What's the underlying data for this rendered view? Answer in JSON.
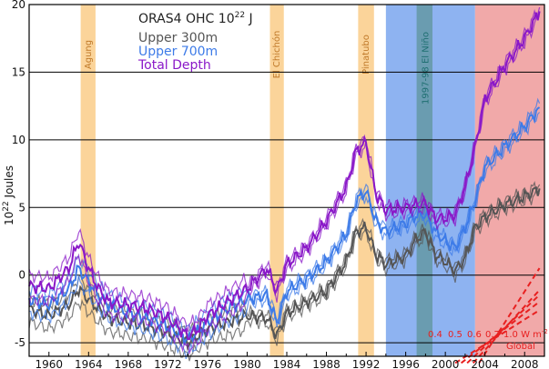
{
  "chart_data": {
    "type": "line",
    "title": "ORAS4  OHC",
    "units": "10",
    "units_exp": "22",
    "units_suffix": " J",
    "xlabel": "",
    "ylabel": "10",
    "ylabel_exp": "22",
    "ylabel_suffix": " Joules",
    "xlim": [
      1958,
      2010
    ],
    "ylim": [
      -6,
      20
    ],
    "x_ticks": [
      "1960",
      "1964",
      "1968",
      "1972",
      "1976",
      "1980",
      "1984",
      "1988",
      "1992",
      "1996",
      "2000",
      "2004",
      "2008"
    ],
    "y_ticks": [
      "-5",
      "0",
      "5",
      "10",
      "15",
      "20"
    ],
    "grid_y": [
      -5,
      0,
      5,
      10,
      15,
      20
    ],
    "events": [
      {
        "label": "Agung",
        "start": 1963.2,
        "end": 1964.7,
        "color": "#fbd49a"
      },
      {
        "label": "El Chichón",
        "start": 1982.3,
        "end": 1983.7,
        "color": "#fbd49a"
      },
      {
        "label": "Pinatubo",
        "start": 1991.2,
        "end": 1992.8,
        "color": "#fbd49a"
      }
    ],
    "periods": [
      {
        "label": "",
        "start": 1994.0,
        "end": 2003.0,
        "color": "#7aa6ee"
      },
      {
        "label": "1997-98 El Niño",
        "start": 1997.1,
        "end": 1998.7,
        "color": "#6a9cb0"
      },
      {
        "label": "",
        "start": 2003.0,
        "end": 2010.0,
        "color": "#ee9a9a"
      }
    ],
    "series": [
      {
        "name": "Upper 300m",
        "color": "#555555",
        "x": [
          1958,
          1960,
          1962,
          1963,
          1964,
          1965,
          1966,
          1968,
          1970,
          1972,
          1974,
          1975,
          1976,
          1978,
          1980,
          1982,
          1983,
          1984,
          1986,
          1988,
          1990,
          1991,
          1992,
          1993,
          1994,
          1996,
          1997,
          1998,
          1999,
          2000,
          2001,
          2002,
          2003,
          2004,
          2006,
          2008,
          2009.5
        ],
        "values": [
          -2.5,
          -3.0,
          -2.2,
          -1.0,
          -1.8,
          -2.5,
          -3.2,
          -3.5,
          -3.8,
          -4.3,
          -5.0,
          -4.5,
          -4.0,
          -3.5,
          -3.0,
          -3.2,
          -4.5,
          -2.8,
          -2.0,
          -1.2,
          1.0,
          3.2,
          3.5,
          1.5,
          0.8,
          1.4,
          2.6,
          3.2,
          1.5,
          1.0,
          0.3,
          1.3,
          3.5,
          4.3,
          5.2,
          5.8,
          6.4
        ]
      },
      {
        "name": "Upper 700m",
        "color": "#3d7be8",
        "x": [
          1958,
          1960,
          1962,
          1963,
          1964,
          1965,
          1966,
          1968,
          1970,
          1972,
          1974,
          1975,
          1976,
          1978,
          1980,
          1982,
          1983,
          1984,
          1986,
          1988,
          1990,
          1991,
          1992,
          1993,
          1994,
          1996,
          1997,
          1998,
          1999,
          2000,
          2001,
          2002,
          2003,
          2004,
          2006,
          2008,
          2009.5
        ],
        "values": [
          -1.8,
          -2.2,
          -1.0,
          0.5,
          -0.5,
          -1.5,
          -2.2,
          -2.8,
          -3.2,
          -3.8,
          -4.8,
          -4.2,
          -3.5,
          -2.5,
          -1.8,
          -1.5,
          -3.5,
          -1.2,
          -0.3,
          1.0,
          3.0,
          5.5,
          6.2,
          4.0,
          3.2,
          3.8,
          4.4,
          4.5,
          3.2,
          2.5,
          2.0,
          3.5,
          5.5,
          8.0,
          9.5,
          11.0,
          12.4
        ]
      },
      {
        "name": "Total Depth",
        "color": "#8a18c8",
        "x": [
          1958,
          1960,
          1962,
          1963,
          1964,
          1965,
          1966,
          1968,
          1970,
          1972,
          1974,
          1975,
          1976,
          1978,
          1980,
          1982,
          1983,
          1984,
          1986,
          1988,
          1990,
          1991,
          1992,
          1993,
          1994,
          1996,
          1997,
          1998,
          1999,
          2000,
          2001,
          2002,
          2003,
          2004,
          2006,
          2008,
          2009.5
        ],
        "values": [
          -0.8,
          -1.0,
          0.5,
          2.5,
          0.5,
          -1.0,
          -2.0,
          -2.2,
          -2.5,
          -3.2,
          -4.5,
          -4.0,
          -3.0,
          -2.0,
          -1.0,
          0.5,
          -1.2,
          0.8,
          2.0,
          4.0,
          6.5,
          9.2,
          9.8,
          6.0,
          4.8,
          5.0,
          5.2,
          5.3,
          4.2,
          4.2,
          4.5,
          6.5,
          9.5,
          13.0,
          15.5,
          17.5,
          19.5
        ]
      }
    ],
    "annotations": {
      "flux_labels": [
        "0.4",
        "0.5",
        "0.6",
        "0.7",
        "1.0"
      ],
      "flux_unit": "W m",
      "flux_unit_exp": "-2",
      "flux_region": "Global",
      "flux_color": "#e82020",
      "flux_start_year": 2002.0,
      "flux_end_year": 2009.5,
      "flux_slopes": [
        0.4,
        0.5,
        0.6,
        0.7,
        1.0
      ]
    },
    "legend_position": "top-left"
  }
}
